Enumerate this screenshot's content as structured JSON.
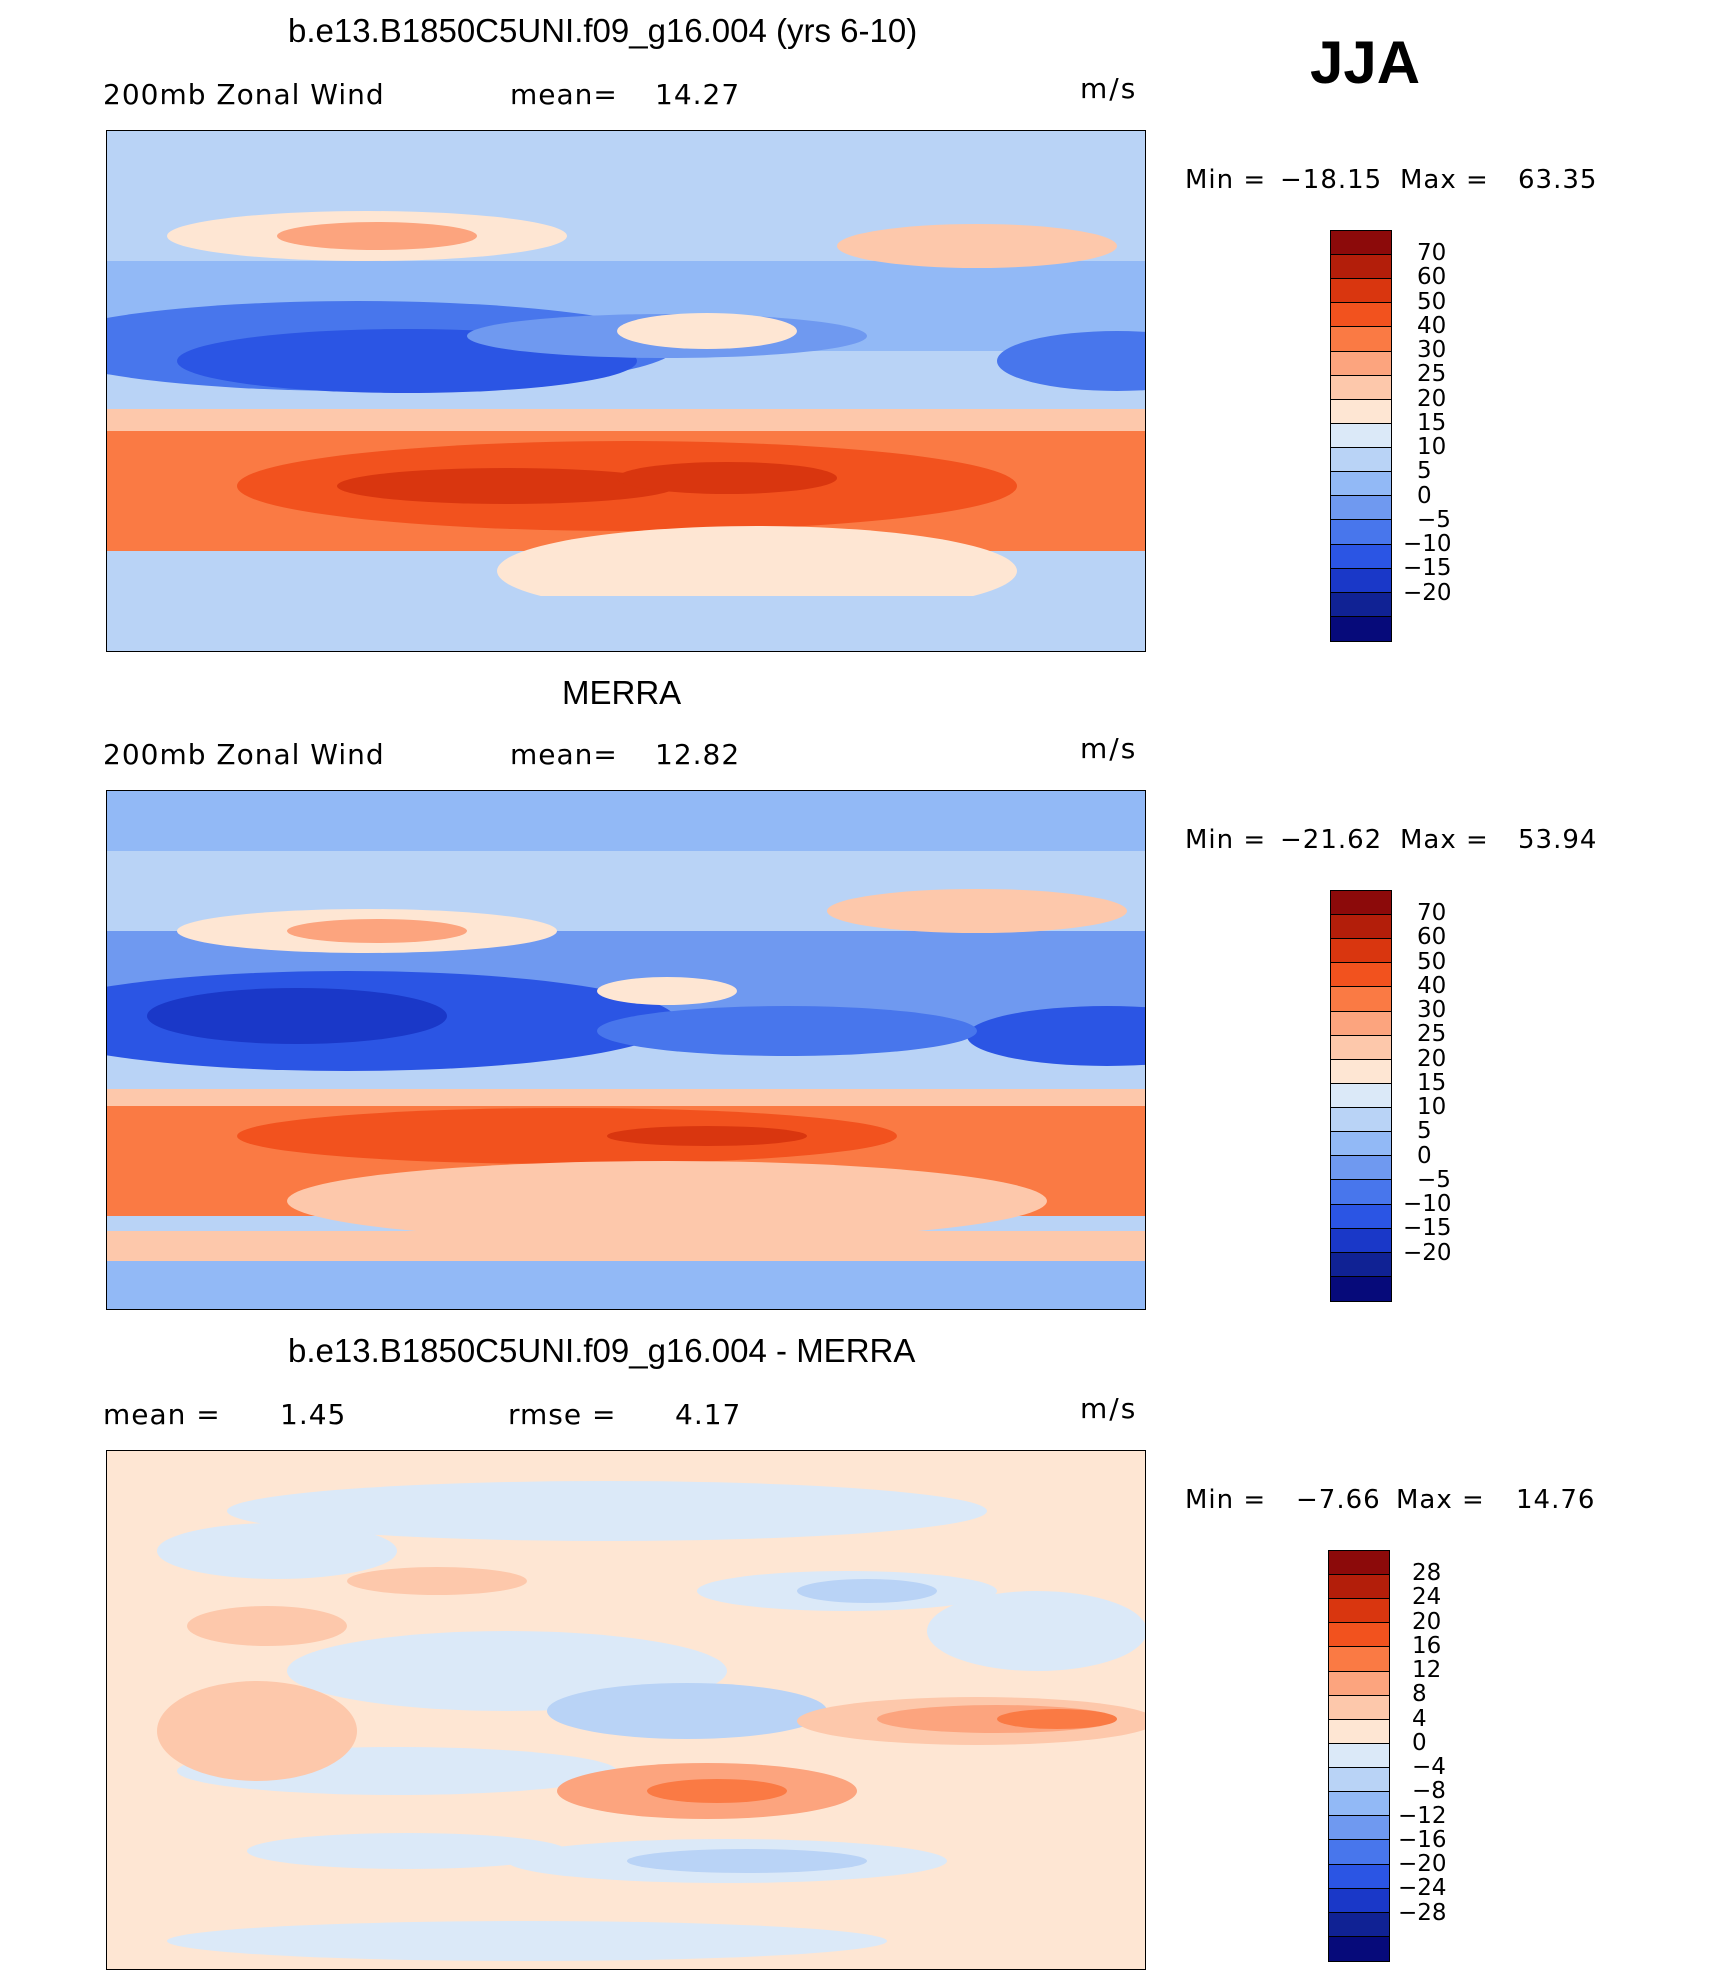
{
  "season": "JJA",
  "panels": [
    {
      "title": "b.e13.B1850C5UNI.f09_g16.004 (yrs 6-10)",
      "left_label": "200mb Zonal Wind",
      "mid_label": "mean=",
      "mid_value": "14.27",
      "units": "m/s",
      "min_label": "Min =",
      "min_value": "−18.15",
      "max_label": "Max =",
      "max_value": "63.35"
    },
    {
      "title": "MERRA",
      "left_label": "200mb Zonal Wind",
      "mid_label": "mean=",
      "mid_value": "12.82",
      "units": "m/s",
      "min_label": "Min =",
      "min_value": "−21.62",
      "max_label": "Max =",
      "max_value": "53.94"
    },
    {
      "title": "b.e13.B1850C5UNI.f09_g16.004 - MERRA",
      "left_label": "mean =",
      "left_value": "1.45",
      "mid_label": "rmse =",
      "mid_value": "4.17",
      "units": "m/s",
      "min_label": "Min =",
      "min_value": "−7.66",
      "max_label": "Max =",
      "max_value": "14.76"
    }
  ],
  "colorbars": {
    "field": {
      "labels": [
        "70",
        "60",
        "50",
        "40",
        "30",
        "25",
        "20",
        "15",
        "10",
        "5",
        "0",
        "−5",
        "−10",
        "−15",
        "−20"
      ],
      "colors": [
        "#8c0a0a",
        "#b31e0a",
        "#d9360f",
        "#f2521e",
        "#fa7a44",
        "#fca47e",
        "#fdc8ab",
        "#fee6d3",
        "#dbe9f8",
        "#b9d3f6",
        "#92b9f6",
        "#6f99f0",
        "#4876ec",
        "#2b55e4",
        "#1a38c8",
        "#102294",
        "#060a7a"
      ]
    },
    "diff": {
      "labels": [
        "28",
        "24",
        "20",
        "16",
        "12",
        "8",
        "4",
        "0",
        "−4",
        "−8",
        "−12",
        "−16",
        "−20",
        "−24",
        "−28"
      ],
      "colors": [
        "#8c0a0a",
        "#b31e0a",
        "#d9360f",
        "#f2521e",
        "#fa7a44",
        "#fca47e",
        "#fdc8ab",
        "#fee6d3",
        "#dbe9f8",
        "#b9d3f6",
        "#92b9f6",
        "#6f99f0",
        "#4876ec",
        "#2b55e4",
        "#1a38c8",
        "#102294",
        "#060a7a"
      ]
    }
  }
}
